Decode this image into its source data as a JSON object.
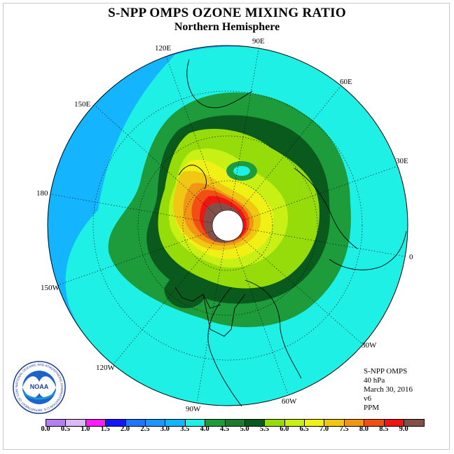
{
  "header": {
    "title": "S-NPP OMPS OZONE MIXING RATIO",
    "subtitle": "Northern Hemisphere"
  },
  "map": {
    "projection": "north-polar-stereographic",
    "longitude_labels": [
      "90E",
      "60E",
      "30E",
      "0",
      "30W",
      "60W",
      "90W",
      "120W",
      "150W",
      "180",
      "150E",
      "120E"
    ],
    "polar_night_fill": "#ffffff"
  },
  "info": {
    "instrument": "S-NPP OMPS",
    "level": "40 hPa",
    "date": "March 30, 2016",
    "version": "v6",
    "units": "PPM"
  },
  "colorbar": {
    "ticks": [
      "0.0",
      "0.5",
      "1.0",
      "1.5",
      "2.0",
      "2.5",
      "3.0",
      "3.5",
      "4.0",
      "4.5",
      "5.0",
      "5.5",
      "6.0",
      "6.5",
      "7.0",
      "7.5",
      "8.0",
      "8.5",
      "9.0"
    ],
    "colors": [
      "#b67ef0",
      "#dcb8f5",
      "#ff1bff",
      "#1414ff",
      "#1e78ff",
      "#1e96ff",
      "#14b4ff",
      "#1ef0e6",
      "#1e9c3c",
      "#1e7a2e",
      "#0a5a1e",
      "#96dc0a",
      "#c8f014",
      "#f0f014",
      "#f0c814",
      "#f09614",
      "#f05014",
      "#f01414",
      "#825046"
    ]
  },
  "logo": {
    "text": "NOAA",
    "ring_text": "NATIONAL OCEANIC AND ATMOSPHERIC ADMINISTRATION U.S. DEPARTMENT OF COMMERCE"
  }
}
